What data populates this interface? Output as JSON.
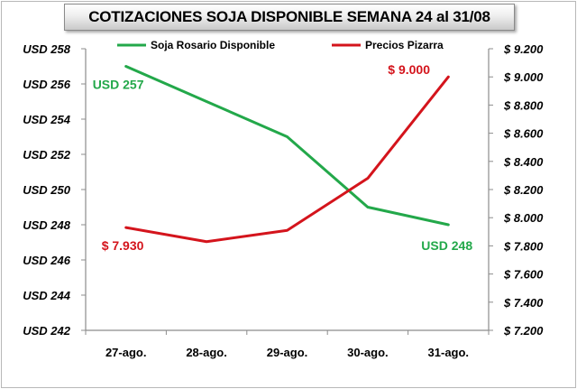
{
  "title": "COTIZACIONES SOJA DISPONIBLE SEMANA 24 al 31/08",
  "chart_data": {
    "type": "line",
    "title": "COTIZACIONES SOJA DISPONIBLE SEMANA 24 al 31/08",
    "categories": [
      "27-ago.",
      "28-ago.",
      "29-ago.",
      "30-ago.",
      "31-ago."
    ],
    "series": [
      {
        "name": "Soja Rosario  Disponible",
        "axis": "left",
        "color": "#23a84a",
        "values": [
          257,
          255,
          253,
          249,
          248
        ]
      },
      {
        "name": "Precios Pizarra",
        "axis": "right",
        "color": "#d4141c",
        "values": [
          7930,
          7830,
          7910,
          8280,
          9000
        ]
      }
    ],
    "y_left": {
      "ylim": [
        242,
        258
      ],
      "ticks": [
        242,
        244,
        246,
        248,
        250,
        252,
        254,
        256,
        258
      ],
      "tick_labels": [
        "USD 242",
        "USD 244",
        "USD 246",
        "USD 248",
        "USD 250",
        "USD 252",
        "USD 254",
        "USD 256",
        "USD 258"
      ]
    },
    "y_right": {
      "ylim": [
        7200,
        9200
      ],
      "ticks": [
        7200,
        7400,
        7600,
        7800,
        8000,
        8200,
        8400,
        8600,
        8800,
        9000,
        9200
      ],
      "tick_labels": [
        "$ 7.200",
        "$ 7.400",
        "$ 7.600",
        "$ 7.800",
        "$ 8.000",
        "$ 8.200",
        "$ 8.400",
        "$ 8.600",
        "$ 8.800",
        "$ 9.000",
        "$ 9.200"
      ]
    },
    "annotations": [
      {
        "text": "USD 257",
        "series": 0,
        "point": 0,
        "color": "#23a84a"
      },
      {
        "text": "USD 248",
        "series": 0,
        "point": 4,
        "color": "#23a84a"
      },
      {
        "text": "$ 7.930",
        "series": 1,
        "point": 0,
        "color": "#d4141c"
      },
      {
        "text": "$ 9.000",
        "series": 1,
        "point": 4,
        "color": "#d4141c"
      }
    ],
    "grid": false,
    "legend_position": "top"
  }
}
